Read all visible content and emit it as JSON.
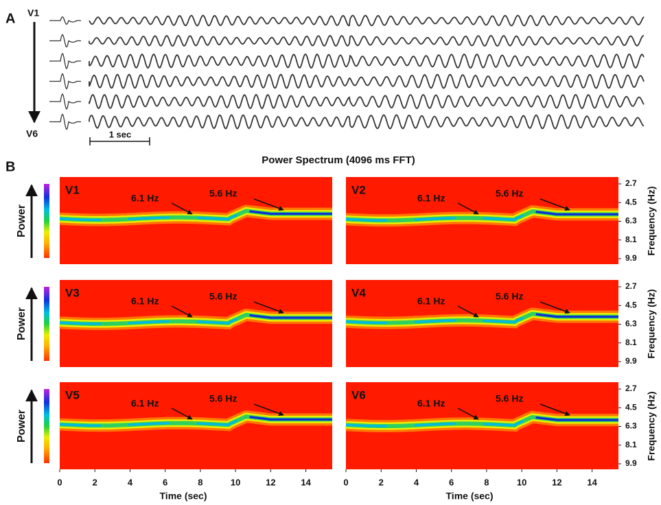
{
  "panel_a": {
    "label": "A",
    "top_lead": "V1",
    "bottom_lead": "V6",
    "scale_bar": "1 sec"
  },
  "panel_b": {
    "label": "B",
    "title": "Power Spectrum (4096 ms FFT)",
    "power_label": "Power",
    "frequency_label": "Frequency (Hz)",
    "time_label": "Time (sec)",
    "frequency_ticks": [
      2.7,
      4.5,
      6.3,
      8.1,
      9.9
    ],
    "time_ticks": [
      0,
      2,
      4,
      6,
      8,
      10,
      12,
      14
    ],
    "spectra": [
      {
        "lead": "V1",
        "annotations": [
          "6.1 Hz",
          "5.6 Hz"
        ]
      },
      {
        "lead": "V2",
        "annotations": [
          "6.1 Hz",
          "5.6 Hz"
        ]
      },
      {
        "lead": "V3",
        "annotations": [
          "6.1 Hz",
          "5.6 Hz"
        ]
      },
      {
        "lead": "V4",
        "annotations": [
          "6.1 Hz",
          "5.6 Hz"
        ]
      },
      {
        "lead": "V5",
        "annotations": [
          "6.1 Hz",
          "5.6 Hz"
        ]
      },
      {
        "lead": "V6",
        "annotations": [
          "6.1 Hz",
          "5.6 Hz"
        ]
      }
    ]
  }
}
